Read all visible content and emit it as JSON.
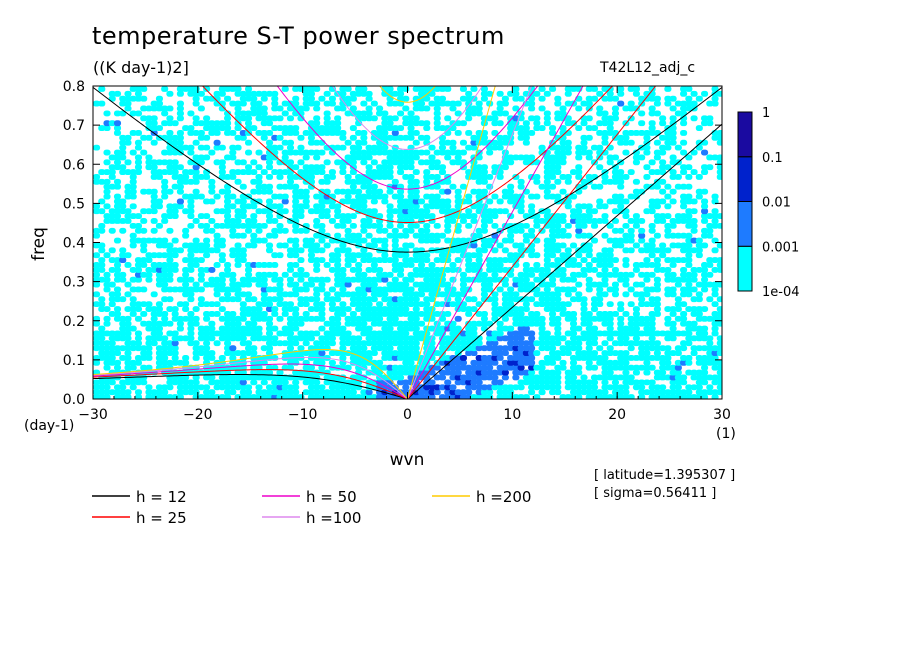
{
  "figure": {
    "title": "temperature S-T power spectrum",
    "units": "((K day-1)2]",
    "run_label": "T42L12_adj_c",
    "info_latitude": "[ latitude=1.395307 ]",
    "info_sigma": "[ sigma=0.56411 ]"
  },
  "chart_data": {
    "type": "heatmap",
    "title": "temperature S-T power spectrum",
    "xlabel": "wvn",
    "ylabel": "freq",
    "x_unit": "(1)",
    "y_unit": "(day-1)",
    "xlim": [
      -30,
      30
    ],
    "ylim": [
      0,
      0.8
    ],
    "x_ticks": [
      -30,
      -20,
      -10,
      0,
      10,
      20,
      30
    ],
    "y_ticks": [
      0.0,
      0.1,
      0.2,
      0.3,
      0.4,
      0.5,
      0.6,
      0.7,
      0.8
    ],
    "x_tick_labels": [
      "−30",
      "−20",
      "−10",
      "0",
      "10",
      "20",
      "30"
    ],
    "y_tick_labels": [
      "0.0",
      "0.1",
      "0.2",
      "0.3",
      "0.4",
      "0.5",
      "0.6",
      "0.7",
      "0.8"
    ],
    "colorbar": {
      "levels": [
        0.0001,
        0.001,
        0.01,
        0.1,
        1
      ],
      "labels": [
        "1e-04",
        "0.001",
        "0.01",
        "0.1",
        "1"
      ],
      "colors": [
        "#00ffff",
        "#1e7bff",
        "#0022cc",
        "#1a0aa0",
        "#4a1aa8"
      ]
    },
    "contour_fill_description_values": {
      "note_level": "1e-04"
    },
    "dispersion_curves": {
      "legend_position": "bottom",
      "items": [
        {
          "label": "h = 12",
          "h": 12,
          "color": "#000000"
        },
        {
          "label": "h = 25",
          "h": 25,
          "color": "#ff0000"
        },
        {
          "label": "h = 50",
          "h": 50,
          "color": "#ee00cc"
        },
        {
          "label": "h =100",
          "h": 100,
          "color": "#dd88ee"
        },
        {
          "label": "h =200",
          "h": 200,
          "color": "#ffcc00"
        }
      ],
      "families": [
        "kelvin",
        "rossby_n1",
        "inertia_gravity_n1"
      ]
    }
  }
}
